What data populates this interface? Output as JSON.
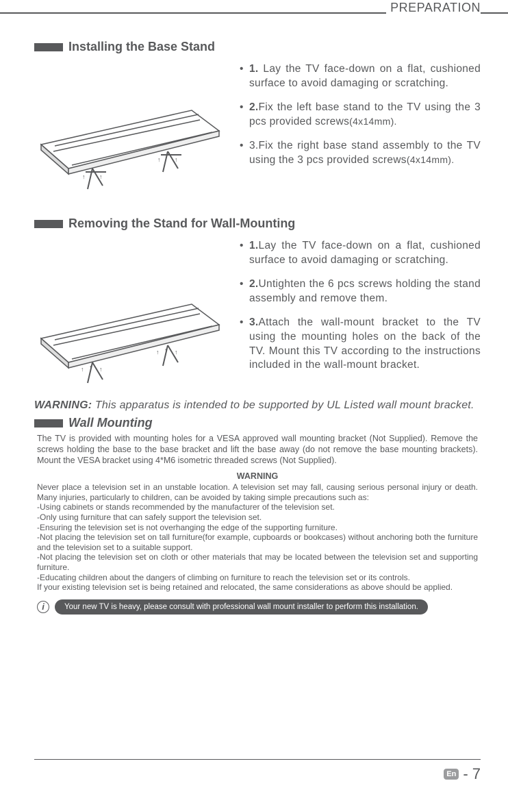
{
  "header": "PREPARATION",
  "section1": {
    "title": "Installing the Base Stand",
    "steps": [
      {
        "num": "1.",
        "bold": true,
        "text": " Lay the TV face-down on a flat, cushioned surface to avoid damaging or scratching."
      },
      {
        "num": "2.",
        "bold": true,
        "text": "Fix the left base stand to  the TV using the 3 pcs provided screws",
        "suffix": "(4x14mm)."
      },
      {
        "num": "3.",
        "bold": false,
        "text": "Fix the right base stand assembly to the TV using the 3 pcs provided screws",
        "suffix": "(4x14mm)."
      }
    ]
  },
  "section2": {
    "title": "Removing the Stand for Wall-Mounting",
    "steps": [
      {
        "num": "1.",
        "text": "Lay the TV face-down on a flat, cushioned surface to avoid damaging or scratching."
      },
      {
        "num": "2.",
        "text": "Untighten the 6 pcs screws holding the stand assembly and remove them."
      },
      {
        "num": "3.",
        "text": "Attach the wall-mount bracket to the TV using the mounting holes on the back of the TV. Mount this TV according to the instructions included in the wall-mount bracket."
      }
    ]
  },
  "warningLine": {
    "label": "WARNING:",
    "text": " This apparatus is intended to be supported by UL Listed wall mount bracket."
  },
  "section3": {
    "title": "Wall Mounting",
    "body": "The TV is provided with mounting holes for a VESA approved wall mounting bracket (Not Supplied). Remove the screws holding the base to the base bracket and lift the base away (do not remove the base mounting brackets). Mount the VESA bracket using 4*M6 isometric threaded screws (Not Supplied).",
    "warnHeader": "WARNING",
    "warnBody": "Never place a television set in an unstable location. A television set may fall, causing serious personal injury or death. Many injuries, particularly to children, can be avoided by taking simple precautions such as:\n-Using cabinets or stands recommended by the manufacturer of the television set.\n-Only using furniture that can safely support the television set.\n-Ensuring the television set is not overhanging the edge of the supporting furniture.\n-Not placing the television set on tall furniture(for example, cupboards or bookcases) without anchoring both the furniture and the television set to a suitable support.\n-Not placing the television set on cloth or other materials that may be located between the television set and supporting furniture.\n-Educating children about the dangers of climbing on furniture to reach the television set or its controls.\nIf your existing television set is being retained and relocated, the same considerations as above should be applied."
  },
  "infoPill": "Your new TV is heavy, please consult with professional wall mount installer to perform this installation.",
  "footer": {
    "lang": "En",
    "page": "- 7"
  }
}
